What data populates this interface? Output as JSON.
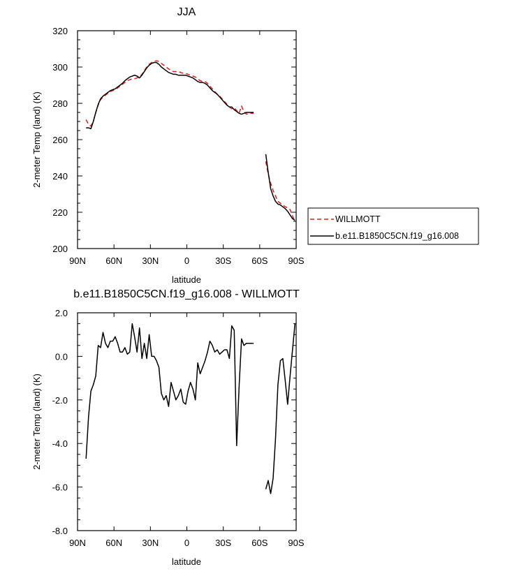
{
  "chart_data": [
    {
      "type": "line",
      "title": "JJA",
      "xlabel": "latitude",
      "ylabel": "2-meter Temp (land) (K)",
      "xlim": [
        90,
        -90
      ],
      "ylim": [
        200,
        320
      ],
      "xticks": [
        90,
        60,
        30,
        0,
        -30,
        -60,
        -90
      ],
      "xtick_labels": [
        "90N",
        "60N",
        "30N",
        "0",
        "30S",
        "60S",
        "90S"
      ],
      "yticks": [
        200,
        220,
        240,
        260,
        280,
        300,
        320
      ],
      "ytick_labels": [
        "200",
        "220",
        "240",
        "260",
        "280",
        "300",
        "320"
      ],
      "legend_position": "right",
      "series": [
        {
          "name": "WILLMOTT",
          "color": "#e41a1c",
          "dash": "dashed",
          "segments": [
            {
              "x": [
                83,
                81,
                79,
                77,
                75,
                73,
                71,
                69,
                67,
                65,
                63,
                61,
                59,
                57,
                55,
                53,
                51,
                49,
                47,
                45,
                43,
                41,
                39,
                37,
                35,
                33,
                31,
                29,
                27,
                25,
                23,
                21,
                19,
                17,
                15,
                13,
                11,
                9,
                7,
                5,
                3,
                1,
                -1,
                -3,
                -5,
                -7,
                -9,
                -11,
                -13,
                -15,
                -17,
                -19,
                -21,
                -23,
                -25,
                -27,
                -29,
                -31,
                -33,
                -35,
                -37,
                -39,
                -41,
                -43,
                -45,
                -47,
                -49,
                -51,
                -53,
                -55
              ],
              "y": [
                271,
                268.5,
                267.5,
                270,
                275,
                279,
                282,
                283.5,
                284.5,
                285.5,
                286.5,
                287,
                287.5,
                288.5,
                289.5,
                290.5,
                291.5,
                292.5,
                293,
                293.5,
                293.5,
                294,
                294.5,
                296,
                298,
                300,
                301.5,
                302.5,
                303,
                303.5,
                303,
                302,
                301,
                300,
                299,
                298,
                297.5,
                297.5,
                297.5,
                297,
                296.5,
                296.5,
                296,
                295.5,
                295,
                294.5,
                293.5,
                292.5,
                292,
                292,
                291,
                289.5,
                288,
                286.5,
                285,
                284,
                282.5,
                281,
                279.5,
                278,
                277,
                277.5,
                276,
                274.5,
                278.5,
                275.5,
                274,
                274.5,
                274.5,
                274.5
              ]
            },
            {
              "x": [
                -65,
                -67,
                -69,
                -71,
                -73,
                -75,
                -77,
                -79,
                -81,
                -83,
                -85,
                -87,
                -89
              ],
              "y": [
                248,
                241,
                236,
                232,
                229,
                226,
                225,
                224,
                223,
                222.5,
                221.5,
                218,
                215
              ]
            }
          ]
        },
        {
          "name": "b.e11.B1850C5CN.f19_g16.008",
          "color": "#000000",
          "dash": "solid",
          "segments": [
            {
              "x": [
                83,
                81,
                79,
                77,
                75,
                73,
                71,
                69,
                67,
                65,
                63,
                61,
                59,
                57,
                55,
                53,
                51,
                49,
                47,
                45,
                43,
                41,
                39,
                37,
                35,
                33,
                31,
                29,
                27,
                25,
                23,
                21,
                19,
                17,
                15,
                13,
                11,
                9,
                7,
                5,
                3,
                1,
                -1,
                -3,
                -5,
                -7,
                -9,
                -11,
                -13,
                -15,
                -17,
                -19,
                -21,
                -23,
                -25,
                -27,
                -29,
                -31,
                -33,
                -35,
                -37,
                -39,
                -41,
                -43,
                -45,
                -47,
                -49,
                -51,
                -53,
                -55
              ],
              "y": [
                266.5,
                266.5,
                266,
                270,
                275,
                279.5,
                282.5,
                284,
                285,
                286,
                287,
                287.5,
                288,
                289,
                290,
                291,
                292.5,
                293.5,
                294.5,
                295,
                295.5,
                295,
                294,
                295.5,
                297.5,
                299.5,
                301,
                302,
                302.5,
                302.5,
                301.5,
                300,
                299,
                298,
                297,
                296.5,
                296,
                296,
                295.5,
                295.5,
                295.5,
                295.5,
                295,
                294.5,
                294,
                293,
                292,
                291.5,
                291.5,
                291,
                290,
                288.5,
                287,
                286,
                285,
                283.5,
                282,
                280.5,
                279,
                278,
                278,
                276.5,
                275.5,
                274.5,
                274,
                274.5,
                275,
                275,
                275,
                275
              ]
            },
            {
              "x": [
                -65,
                -67,
                -69,
                -71,
                -73,
                -75,
                -77,
                -79,
                -81,
                -83,
                -85,
                -87,
                -89
              ],
              "y": [
                252,
                242,
                233,
                229,
                226,
                224.5,
                224,
                223,
                222,
                220.5,
                218.5,
                216.5,
                215.5
              ]
            }
          ]
        }
      ]
    },
    {
      "type": "line",
      "title": "b.e11.B1850C5CN.f19_g16.008 - WILLMOTT",
      "xlabel": "latitude",
      "ylabel": "2-meter Temp (land) (K)",
      "xlim": [
        90,
        -90
      ],
      "ylim": [
        -8,
        2
      ],
      "xticks": [
        90,
        60,
        30,
        0,
        -30,
        -60,
        -90
      ],
      "xtick_labels": [
        "90N",
        "60N",
        "30N",
        "0",
        "30S",
        "60S",
        "90S"
      ],
      "yticks": [
        -8,
        -6,
        -4,
        -2,
        0,
        2
      ],
      "ytick_labels": [
        "-8.0",
        "-6.0",
        "-4.0",
        "-2.0",
        "0.0",
        "2.0"
      ],
      "series": [
        {
          "color": "#000000",
          "dash": "solid",
          "segments": [
            {
              "x": [
                83,
                81,
                79,
                77,
                75,
                73,
                71,
                69,
                67,
                65,
                63,
                61,
                59,
                57,
                55,
                53,
                51,
                49,
                47,
                45,
                43,
                41,
                39,
                37,
                35,
                33,
                31,
                29,
                27,
                25,
                23,
                21,
                19,
                17,
                15,
                13,
                11,
                9,
                7,
                5,
                3,
                1,
                -1,
                -3,
                -5,
                -7,
                -9,
                -11,
                -13,
                -15,
                -17,
                -19,
                -21,
                -23,
                -25,
                -27,
                -29,
                -31,
                -33,
                -35,
                -37,
                -39,
                -41,
                -43,
                -45,
                -47,
                -49,
                -51,
                -53,
                -55
              ],
              "y": [
                -4.7,
                -2.8,
                -1.6,
                -1.3,
                -0.9,
                0.5,
                0.4,
                1.1,
                0.6,
                0.4,
                0.7,
                0.7,
                0.9,
                0.6,
                0.2,
                0.2,
                0.4,
                0.1,
                0.2,
                1.5,
                0.9,
                0.2,
                1.3,
                -0.1,
                0.6,
                -0.1,
                1.0,
                0.0,
                0.0,
                -0.2,
                -0.5,
                -1.7,
                -2.0,
                -1.8,
                -2.3,
                -1.2,
                -1.6,
                -2.0,
                -1.8,
                -1.5,
                -2.1,
                -2.2,
                -1.6,
                -1.2,
                -1.5,
                -2.0,
                -0.3,
                -0.8,
                -0.5,
                -0.2,
                0.2,
                0.7,
                0.5,
                0.2,
                0.3,
                0.1,
                0.2,
                0.3,
                0.3,
                -0.1,
                1.4,
                1.2,
                -4.1,
                -1.4,
                0.8,
                0.5,
                0.6,
                0.6,
                0.6,
                0.6
              ]
            },
            {
              "x": [
                -65,
                -67,
                -69,
                -71,
                -73,
                -75,
                -77,
                -79,
                -81,
                -83,
                -85,
                -87,
                -89
              ],
              "y": [
                -6.1,
                -5.7,
                -6.3,
                -5.6,
                -3.8,
                -1.3,
                -0.2,
                -0.1,
                -1.1,
                -2.2,
                -0.9,
                0.3,
                1.5
              ]
            }
          ]
        }
      ]
    }
  ]
}
